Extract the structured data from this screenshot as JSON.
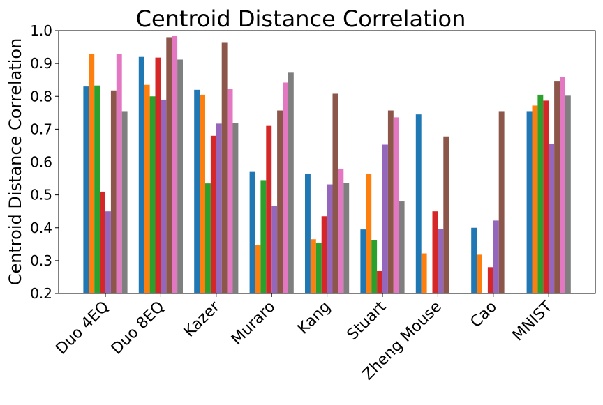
{
  "chart_data": {
    "type": "bar",
    "title": "Centroid Distance Correlation",
    "xlabel": "",
    "ylabel": "Centroid Distance Correlation",
    "ylim": [
      0.2,
      1.0
    ],
    "yticks": [
      0.2,
      0.3,
      0.4,
      0.5,
      0.6,
      0.7,
      0.8,
      0.9,
      1.0
    ],
    "ytick_labels": [
      "0.2",
      "0.3",
      "0.4",
      "0.5",
      "0.6",
      "0.7",
      "0.8",
      "0.9",
      "1.0"
    ],
    "grid": false,
    "legend": "none",
    "categories": [
      "Duo 4EQ",
      "Duo 8EQ",
      "Kazer",
      "Muraro",
      "Kang",
      "Stuart",
      "Zheng Mouse",
      "Cao",
      "MNIST"
    ],
    "series": [
      {
        "color": "#1f77b4",
        "values": [
          0.83,
          0.92,
          0.82,
          0.57,
          0.565,
          0.395,
          0.745,
          0.4,
          0.755
        ]
      },
      {
        "color": "#ff7f0e",
        "values": [
          0.93,
          0.835,
          0.805,
          0.348,
          0.365,
          0.565,
          0.322,
          0.318,
          0.772
        ]
      },
      {
        "color": "#2ca02c",
        "values": [
          0.833,
          0.8,
          0.535,
          0.545,
          0.355,
          0.362,
          null,
          null,
          0.805
        ]
      },
      {
        "color": "#d62728",
        "values": [
          0.51,
          0.918,
          0.68,
          0.71,
          0.435,
          0.268,
          0.45,
          0.28,
          0.787
        ]
      },
      {
        "color": "#9467bd",
        "values": [
          0.45,
          0.79,
          0.717,
          0.467,
          0.532,
          0.653,
          0.397,
          0.422,
          0.655
        ]
      },
      {
        "color": "#8c564b",
        "values": [
          0.818,
          0.98,
          0.965,
          0.757,
          0.808,
          0.757,
          0.678,
          0.755,
          0.847
        ]
      },
      {
        "color": "#e377c2",
        "values": [
          0.928,
          0.983,
          0.823,
          0.842,
          0.58,
          0.736,
          null,
          null,
          0.86
        ]
      },
      {
        "color": "#7f7f7f",
        "values": [
          0.755,
          0.912,
          0.718,
          0.872,
          0.537,
          0.48,
          null,
          null,
          0.802
        ]
      }
    ]
  }
}
